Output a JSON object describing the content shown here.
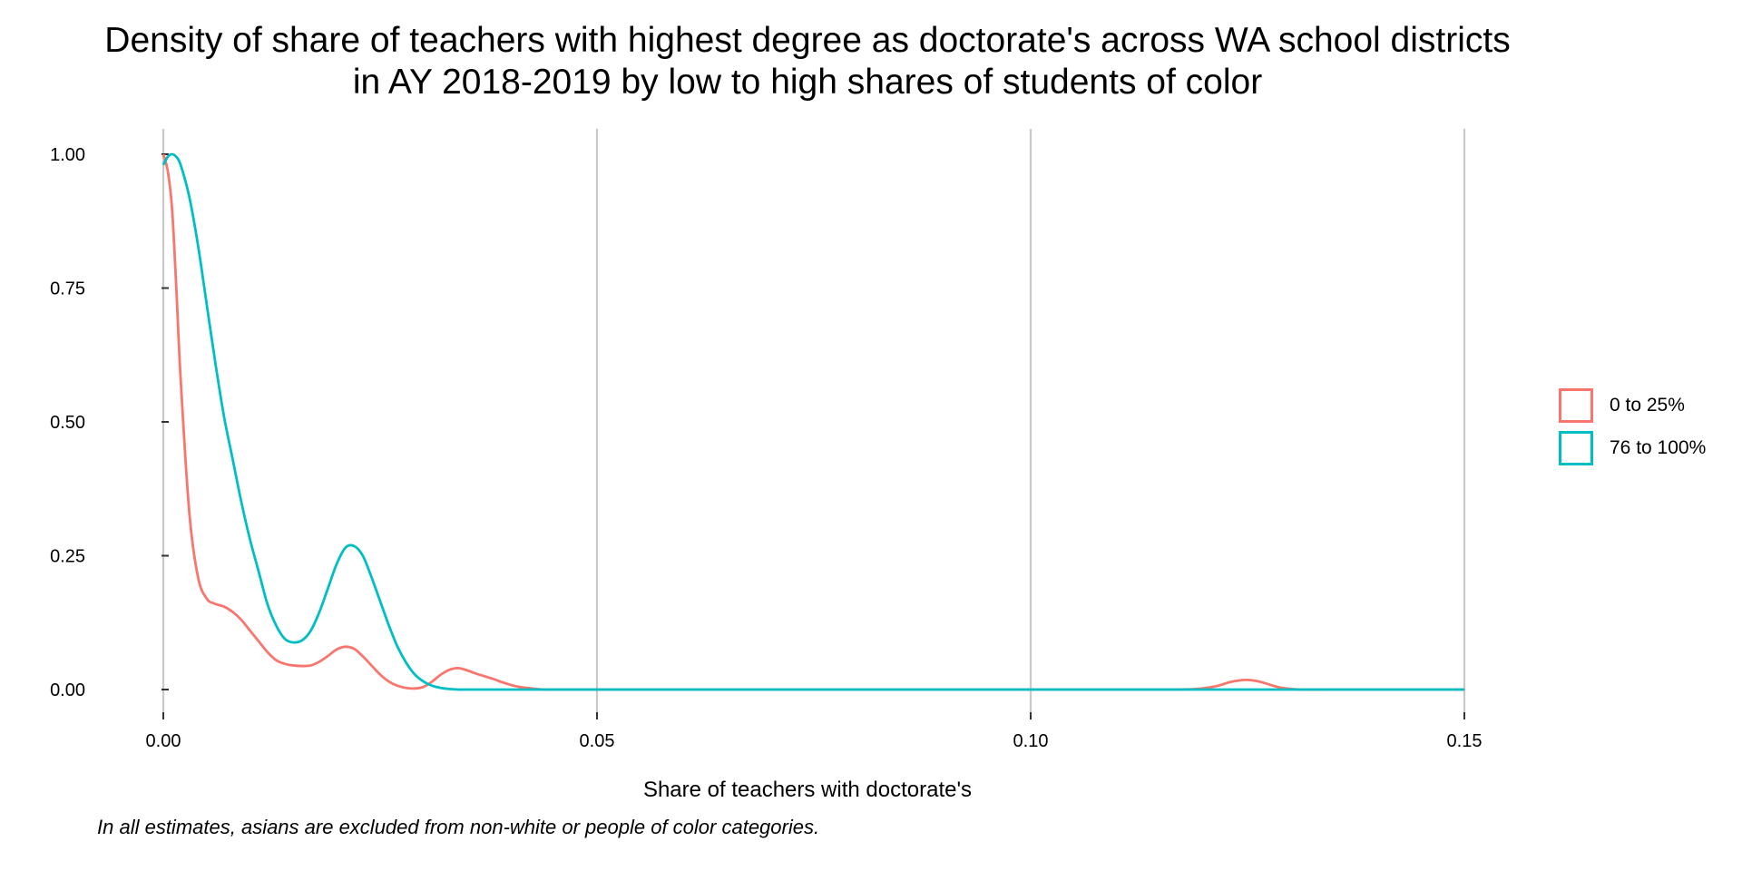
{
  "title_lines": [
    "Density of share of teachers with highest degree as doctorate's across WA school districts",
    "in AY 2018-2019 by low to high shares of students of color"
  ],
  "caption": "In all estimates, asians are excluded from non-white or people of color categories.",
  "chart_data": {
    "type": "line",
    "title": "Density of share of teachers with highest degree as doctorate's across WA school districts in AY 2018-2019 by low to high shares of students of color",
    "xlabel": "Share of teachers with doctorate's",
    "ylabel": "",
    "xlim": [
      0,
      0.15
    ],
    "ylim": [
      0,
      1
    ],
    "x_ticks": [
      0,
      0.05,
      0.1,
      0.15
    ],
    "x_tick_labels": [
      "0.00",
      "0.05",
      "0.10",
      "0.15"
    ],
    "y_ticks": [
      0,
      0.25,
      0.5,
      0.75,
      1
    ],
    "y_tick_labels": [
      "0.00",
      "0.25",
      "0.50",
      "0.75",
      "1.00"
    ],
    "grid": "vertical major gridlines",
    "legend_position": "right",
    "series": [
      {
        "name": "0 to 25%",
        "color": "#F8766D",
        "x": [
          0,
          0.0005,
          0.001,
          0.0015,
          0.002,
          0.003,
          0.004,
          0.005,
          0.006,
          0.007,
          0.008,
          0.009,
          0.01,
          0.011,
          0.012,
          0.013,
          0.014,
          0.015,
          0.016,
          0.017,
          0.018,
          0.019,
          0.02,
          0.021,
          0.022,
          0.023,
          0.024,
          0.025,
          0.026,
          0.027,
          0.028,
          0.029,
          0.03,
          0.031,
          0.032,
          0.033,
          0.034,
          0.035,
          0.036,
          0.037,
          0.038,
          0.039,
          0.04,
          0.041,
          0.042,
          0.043,
          0.044,
          0.046,
          0.05,
          0.06,
          0.08,
          0.1,
          0.115,
          0.119,
          0.121,
          0.122,
          0.123,
          0.124,
          0.125,
          0.126,
          0.127,
          0.128,
          0.129,
          0.131,
          0.135,
          0.15
        ],
        "y": [
          1.0,
          0.97,
          0.9,
          0.75,
          0.58,
          0.33,
          0.21,
          0.17,
          0.16,
          0.155,
          0.145,
          0.13,
          0.11,
          0.09,
          0.07,
          0.055,
          0.048,
          0.045,
          0.044,
          0.045,
          0.052,
          0.063,
          0.075,
          0.08,
          0.076,
          0.062,
          0.045,
          0.028,
          0.015,
          0.007,
          0.003,
          0.002,
          0.005,
          0.015,
          0.028,
          0.037,
          0.04,
          0.036,
          0.03,
          0.025,
          0.02,
          0.014,
          0.009,
          0.005,
          0.003,
          0.001,
          0.0,
          0.0,
          0.0,
          0.0,
          0.0,
          0.0,
          0.0,
          0.001,
          0.005,
          0.009,
          0.014,
          0.017,
          0.018,
          0.016,
          0.012,
          0.007,
          0.003,
          0.0,
          0.0,
          0.0
        ]
      },
      {
        "name": "76 to 100%",
        "color": "#00BFC4",
        "x": [
          0,
          0.0005,
          0.001,
          0.0015,
          0.002,
          0.003,
          0.004,
          0.005,
          0.006,
          0.007,
          0.008,
          0.009,
          0.01,
          0.011,
          0.012,
          0.013,
          0.014,
          0.015,
          0.016,
          0.017,
          0.018,
          0.019,
          0.02,
          0.021,
          0.022,
          0.023,
          0.024,
          0.025,
          0.026,
          0.027,
          0.028,
          0.029,
          0.03,
          0.031,
          0.032,
          0.033,
          0.034,
          0.035,
          0.036,
          0.037,
          0.038,
          0.039,
          0.04,
          0.042,
          0.044,
          0.05,
          0.07,
          0.1,
          0.13,
          0.15
        ],
        "y": [
          0.98,
          0.995,
          1.0,
          0.995,
          0.98,
          0.92,
          0.83,
          0.72,
          0.61,
          0.51,
          0.43,
          0.35,
          0.28,
          0.22,
          0.16,
          0.12,
          0.095,
          0.088,
          0.092,
          0.11,
          0.145,
          0.19,
          0.235,
          0.265,
          0.268,
          0.25,
          0.21,
          0.165,
          0.12,
          0.08,
          0.05,
          0.028,
          0.015,
          0.007,
          0.003,
          0.001,
          0.0,
          0.0,
          0.0,
          0.0,
          0.0,
          0.0,
          0.0,
          0.0,
          0.0,
          0.0,
          0.0,
          0.0,
          0.0,
          0.0
        ]
      }
    ]
  }
}
